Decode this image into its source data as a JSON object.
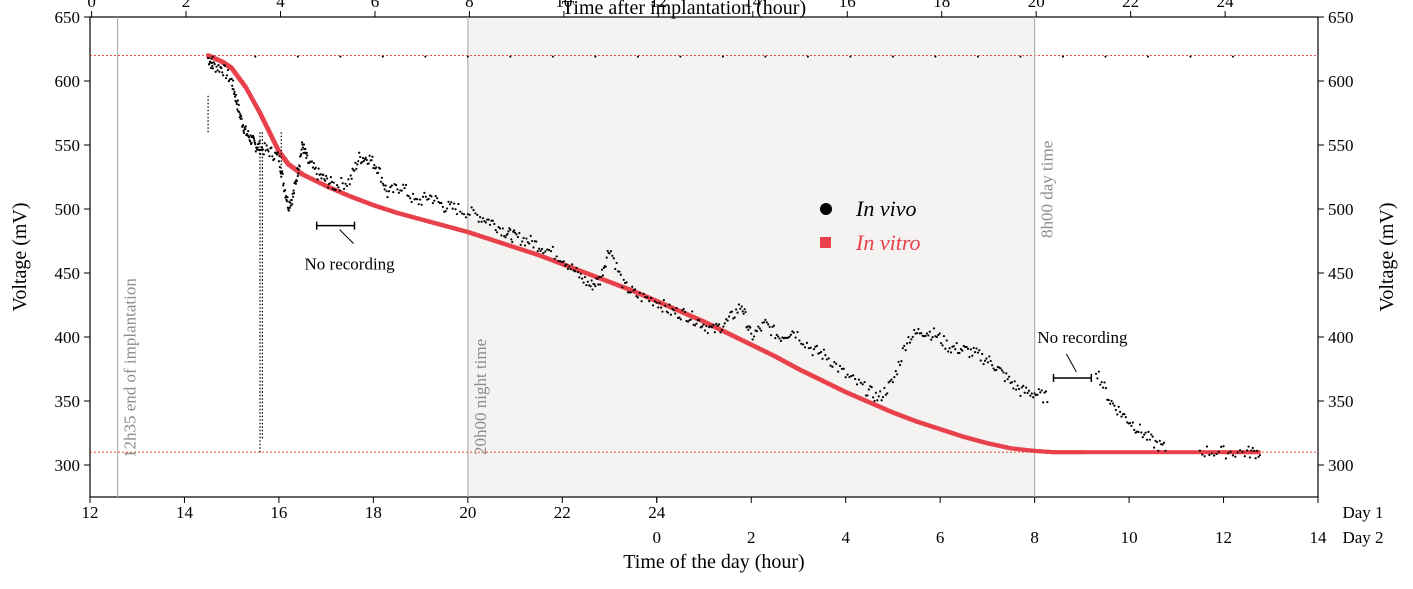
{
  "chart_data": {
    "type": "scatter",
    "xlabel_bottom": "Time of the day (hour)",
    "xlabel_top": "Time after implantation (hour)",
    "ylabel": "Voltage (mV)",
    "ylim": [
      275,
      650
    ],
    "yticks": [
      300,
      350,
      400,
      450,
      500,
      550,
      600,
      650
    ],
    "xlim": [
      12,
      38
    ],
    "top_axis_ticks": [
      0,
      2,
      4,
      6,
      8,
      10,
      12,
      14,
      16,
      18,
      20,
      22,
      24
    ],
    "bottom_day1_ticks": [
      12,
      14,
      16,
      18,
      20,
      22,
      24
    ],
    "bottom_day2_ticks": [
      0,
      2,
      4,
      6,
      8,
      10,
      12,
      14
    ],
    "day_labels": [
      "Day 1",
      "Day 2"
    ],
    "grid": false,
    "legend_position": "center",
    "shaded_region": {
      "x_start": 20,
      "x_end": 32,
      "color": "#f5f3f1"
    },
    "vertical_lines": [
      {
        "x": 12.5833,
        "label": "12h35  end of implantation"
      },
      {
        "x": 20,
        "label": "20h00 night time"
      },
      {
        "x": 32,
        "label": "8h00 day time"
      }
    ],
    "horizontal_lines": [
      {
        "y": 620,
        "color": "#e8372c"
      },
      {
        "y": 310,
        "color": "#e8372c"
      }
    ],
    "annotations": [
      {
        "text": "No recording",
        "gap_x": [
          16.8,
          17.6
        ],
        "y": 487
      },
      {
        "text": "No recording",
        "gap_x": [
          32.4,
          33.2
        ],
        "y": 368
      }
    ],
    "series": [
      {
        "name": "In vivo",
        "color": "#000000",
        "marker": "circle",
        "points": [
          [
            14.5,
            618
          ],
          [
            14.6,
            612
          ],
          [
            14.8,
            610
          ],
          [
            15.0,
            600
          ],
          [
            15.1,
            585
          ],
          [
            15.2,
            570
          ],
          [
            15.3,
            560
          ],
          [
            15.4,
            555
          ],
          [
            15.5,
            550
          ],
          [
            15.6,
            548
          ],
          [
            15.8,
            545
          ],
          [
            16.0,
            540
          ],
          [
            16.1,
            520
          ],
          [
            16.2,
            503
          ],
          [
            16.3,
            510
          ],
          [
            16.4,
            530
          ],
          [
            16.5,
            550
          ],
          [
            16.6,
            538
          ],
          [
            16.8,
            528
          ],
          [
            17.0,
            522
          ],
          [
            17.2,
            518
          ],
          [
            17.5,
            522
          ],
          [
            17.7,
            540
          ],
          [
            17.9,
            540
          ],
          [
            18.1,
            532
          ],
          [
            18.3,
            512
          ],
          [
            18.6,
            518
          ],
          [
            18.9,
            505
          ],
          [
            19.2,
            510
          ],
          [
            19.5,
            502
          ],
          [
            19.8,
            500
          ],
          [
            20.2,
            495
          ],
          [
            20.5,
            490
          ],
          [
            20.8,
            482
          ],
          [
            21.0,
            478
          ],
          [
            21.3,
            475
          ],
          [
            21.6,
            470
          ],
          [
            22.0,
            462
          ],
          [
            22.3,
            450
          ],
          [
            22.6,
            440
          ],
          [
            22.8,
            445
          ],
          [
            23.0,
            470
          ],
          [
            23.3,
            440
          ],
          [
            23.6,
            432
          ],
          [
            24.0,
            428
          ],
          [
            24.3,
            420
          ],
          [
            24.6,
            418
          ],
          [
            24.9,
            412
          ],
          [
            25.2,
            405
          ],
          [
            25.5,
            412
          ],
          [
            25.8,
            425
          ],
          [
            26.0,
            400
          ],
          [
            26.3,
            410
          ],
          [
            26.6,
            400
          ],
          [
            26.9,
            405
          ],
          [
            27.3,
            390
          ],
          [
            27.6,
            385
          ],
          [
            28.0,
            370
          ],
          [
            28.4,
            360
          ],
          [
            28.7,
            352
          ],
          [
            29.0,
            365
          ],
          [
            29.3,
            398
          ],
          [
            29.6,
            405
          ],
          [
            29.9,
            402
          ],
          [
            30.2,
            392
          ],
          [
            30.5,
            390
          ],
          [
            30.8,
            386
          ],
          [
            31.1,
            380
          ],
          [
            31.4,
            368
          ],
          [
            31.7,
            358
          ],
          [
            32.0,
            356
          ],
          [
            32.3,
            352
          ],
          [
            33.3,
            375
          ],
          [
            33.6,
            350
          ],
          [
            33.9,
            338
          ],
          [
            34.2,
            328
          ],
          [
            34.5,
            318
          ],
          [
            34.8,
            312
          ],
          [
            35.5,
            311
          ],
          [
            36.0,
            310
          ],
          [
            36.5,
            310
          ],
          [
            36.8,
            310
          ]
        ],
        "spikes": [
          [
            14.5,
            590
          ],
          [
            15.6,
            310
          ],
          [
            15.65,
            320
          ],
          [
            16.05,
            530
          ]
        ]
      },
      {
        "name": "In vitro",
        "color": "#e8414b",
        "marker": "square",
        "points": [
          [
            14.5,
            620
          ],
          [
            14.8,
            615
          ],
          [
            15.0,
            610
          ],
          [
            15.3,
            595
          ],
          [
            15.6,
            575
          ],
          [
            15.8,
            560
          ],
          [
            16.0,
            545
          ],
          [
            16.2,
            535
          ],
          [
            16.5,
            527
          ],
          [
            17.0,
            518
          ],
          [
            17.5,
            510
          ],
          [
            18.0,
            503
          ],
          [
            18.5,
            497
          ],
          [
            19.0,
            492
          ],
          [
            19.5,
            487
          ],
          [
            20.0,
            482
          ],
          [
            20.5,
            476
          ],
          [
            21.0,
            470
          ],
          [
            21.5,
            464
          ],
          [
            22.0,
            457
          ],
          [
            22.5,
            450
          ],
          [
            23.0,
            443
          ],
          [
            23.5,
            436
          ],
          [
            24.0,
            428
          ],
          [
            24.5,
            420
          ],
          [
            25.0,
            412
          ],
          [
            25.5,
            403
          ],
          [
            26.0,
            394
          ],
          [
            26.5,
            385
          ],
          [
            27.0,
            375
          ],
          [
            27.5,
            366
          ],
          [
            28.0,
            357
          ],
          [
            28.5,
            349
          ],
          [
            29.0,
            341
          ],
          [
            29.5,
            334
          ],
          [
            30.0,
            328
          ],
          [
            30.5,
            322
          ],
          [
            31.0,
            317
          ],
          [
            31.5,
            313
          ],
          [
            32.0,
            311
          ],
          [
            32.4,
            310
          ],
          [
            33.0,
            310
          ],
          [
            34.0,
            310
          ],
          [
            35.0,
            310
          ],
          [
            36.0,
            310
          ],
          [
            36.8,
            310
          ]
        ]
      }
    ]
  },
  "legend": {
    "invivo_label": "In vivo",
    "invitro_label": "In vitro"
  }
}
